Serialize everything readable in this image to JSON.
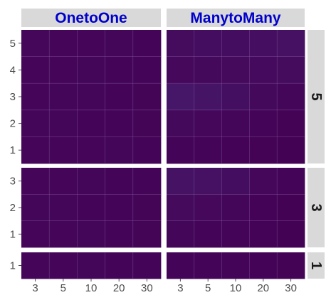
{
  "chart_data": {
    "type": "heatmap",
    "title": "",
    "xlabel": "",
    "ylabel": "",
    "x_categories": [
      "3",
      "5",
      "10",
      "20",
      "30"
    ],
    "columns": [
      {
        "label": "OnetoOne",
        "label_color": "#0000cc"
      },
      {
        "label": "ManytoMany",
        "label_color": "#0000cc"
      }
    ],
    "rows": [
      {
        "label": "5",
        "y_levels": [
          "1",
          "2",
          "3",
          "4",
          "5"
        ]
      },
      {
        "label": "3",
        "y_levels": [
          "1",
          "2",
          "3"
        ]
      },
      {
        "label": "1",
        "y_levels": [
          "1"
        ]
      }
    ],
    "color_scale": {
      "low": "#440154",
      "high": "#482878"
    },
    "value_range": [
      0,
      1
    ],
    "cells": {
      "OnetoOne": {
        "5": [
          [
            0.14,
            0.13,
            0.13,
            0.12,
            0.1
          ],
          [
            0.12,
            0.12,
            0.11,
            0.11,
            0.09
          ],
          [
            0.13,
            0.12,
            0.12,
            0.11,
            0.09
          ],
          [
            0.14,
            0.13,
            0.12,
            0.11,
            0.1
          ],
          [
            0.15,
            0.14,
            0.13,
            0.12,
            0.11
          ]
        ],
        "3": [
          [
            0.13,
            0.13,
            0.12,
            0.11,
            0.09
          ],
          [
            0.12,
            0.12,
            0.11,
            0.1,
            0.09
          ],
          [
            0.14,
            0.13,
            0.12,
            0.11,
            0.1
          ]
        ],
        "1": [
          [
            0.13,
            0.13,
            0.12,
            0.11,
            0.1
          ]
        ]
      },
      "ManytoMany": {
        "5": [
          [
            0.1,
            0.08,
            0.06,
            0.04,
            0.02
          ],
          [
            0.2,
            0.16,
            0.12,
            0.07,
            0.04
          ],
          [
            0.55,
            0.48,
            0.35,
            0.2,
            0.12
          ],
          [
            0.18,
            0.2,
            0.22,
            0.24,
            0.26
          ],
          [
            0.28,
            0.3,
            0.32,
            0.34,
            0.4
          ]
        ],
        "3": [
          [
            0.12,
            0.1,
            0.08,
            0.05,
            0.03
          ],
          [
            0.22,
            0.18,
            0.12,
            0.06,
            0.03
          ],
          [
            0.45,
            0.42,
            0.3,
            0.15,
            0.08
          ]
        ],
        "1": [
          [
            0.1,
            0.08,
            0.07,
            0.05,
            0.04
          ]
        ]
      }
    },
    "grid": true,
    "strip_background": "#d9d9d9",
    "grid_color": "#8a5fa8"
  }
}
